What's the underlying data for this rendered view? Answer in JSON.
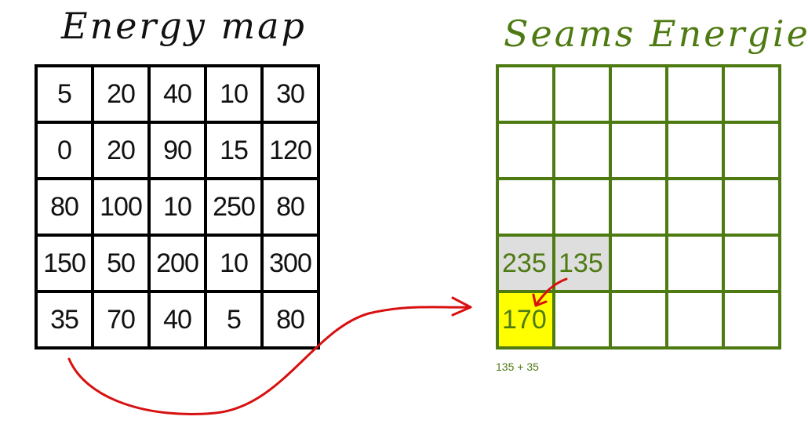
{
  "energy_map": {
    "title": "Energy map",
    "rows": [
      [
        "5",
        "20",
        "40",
        "10",
        "30"
      ],
      [
        "0",
        "20",
        "90",
        "15",
        "120"
      ],
      [
        "80",
        "100",
        "10",
        "250",
        "80"
      ],
      [
        "150",
        "50",
        "200",
        "10",
        "300"
      ],
      [
        "35",
        "70",
        "40",
        "5",
        "80"
      ]
    ]
  },
  "seams": {
    "title": "Seams Energies",
    "rows": [
      [
        "",
        "",
        "",
        "",
        ""
      ],
      [
        "",
        "",
        "",
        "",
        ""
      ],
      [
        "",
        "",
        "",
        "",
        ""
      ],
      [
        "235",
        "135",
        "",
        "",
        ""
      ],
      [
        "170",
        "",
        "",
        "",
        ""
      ]
    ],
    "highlight_gray": [
      [
        3,
        0
      ],
      [
        3,
        1
      ]
    ],
    "highlight_yellow": [
      [
        4,
        0
      ]
    ],
    "formula": "135 + 35"
  },
  "colors": {
    "seam_green": "#4e7a12",
    "arrow_red": "#d81010",
    "gray_fill": "#dedede",
    "yellow_fill": "#ffff00"
  }
}
